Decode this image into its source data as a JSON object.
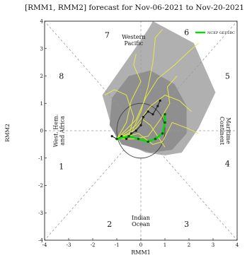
{
  "chart_data": {
    "type": "scatter",
    "title": "[RMM1, RMM2] forecast for Nov-06-2021 to Nov-20-2021",
    "xlabel": "RMM1",
    "ylabel": "RMM2",
    "xlim": [
      -4,
      4
    ],
    "ylim": [
      -4,
      4
    ],
    "x_ticks": [
      "-4",
      "-3",
      "-2",
      "-1",
      "0",
      "1",
      "2",
      "3",
      "4"
    ],
    "y_ticks": [
      "-4",
      "-3",
      "-2",
      "-1",
      "0",
      "1",
      "2",
      "3",
      "4"
    ],
    "phases": [
      {
        "label": "1",
        "x": -3.3,
        "y": -1.3
      },
      {
        "label": "2",
        "x": -1.3,
        "y": -3.4
      },
      {
        "label": "3",
        "x": 1.9,
        "y": -3.4
      },
      {
        "label": "4",
        "x": 3.6,
        "y": -1.2
      },
      {
        "label": "5",
        "x": 3.6,
        "y": 2.0
      },
      {
        "label": "6",
        "x": 1.9,
        "y": 3.6
      },
      {
        "label": "7",
        "x": -1.4,
        "y": 3.5
      },
      {
        "label": "8",
        "x": -3.3,
        "y": 2.0
      }
    ],
    "regions": [
      {
        "lines": [
          "Western",
          "Pacific"
        ],
        "x": -0.3,
        "y": 3.3
      },
      {
        "lines": [
          "Indian",
          "Ocean"
        ],
        "x": 0.0,
        "y": -3.3
      },
      {
        "lines": [
          "West. Hem.",
          "and Africa"
        ],
        "x": -3.4,
        "y": 0.0,
        "rotate": -90
      },
      {
        "lines": [
          "Maritime",
          "Continent"
        ],
        "x": 3.5,
        "y": 0.0,
        "rotate": 90
      }
    ],
    "legend": {
      "label": "NCEP GEFSBC",
      "color": "#00e000",
      "placement": "top-right"
    },
    "colors": {
      "outer_spread": "#b0b0b0",
      "inner_spread": "#8f8f8f",
      "members": "#e8e84a",
      "observed": "#1a1a1a",
      "ensemble_mean": "#00e000",
      "axis_dash": "#9a9a9a"
    },
    "outer_spread": [
      [
        0.5,
        4.0
      ],
      [
        2.2,
        3.2
      ],
      [
        3.1,
        1.4
      ],
      [
        2.4,
        0.1
      ],
      [
        1.7,
        -0.8
      ],
      [
        1.0,
        -0.9
      ],
      [
        0.2,
        -0.8
      ],
      [
        -1.0,
        -0.3
      ],
      [
        -1.3,
        0.4
      ],
      [
        -1.6,
        1.3
      ],
      [
        -0.4,
        2.8
      ],
      [
        0.3,
        3.7
      ]
    ],
    "inner_spread": [
      [
        0.4,
        2.2
      ],
      [
        1.4,
        1.7
      ],
      [
        1.9,
        0.9
      ],
      [
        1.9,
        -0.1
      ],
      [
        1.3,
        -0.7
      ],
      [
        0.4,
        -0.8
      ],
      [
        -0.8,
        -0.5
      ],
      [
        -1.3,
        0.2
      ],
      [
        -1.2,
        1.2
      ],
      [
        -0.5,
        2.0
      ]
    ],
    "members": [
      [
        [
          -1.0,
          -0.3
        ],
        [
          -0.3,
          0.0
        ],
        [
          0.1,
          0.4
        ],
        [
          0.4,
          0.2
        ],
        [
          0.7,
          -0.2
        ],
        [
          1.0,
          -0.6
        ]
      ],
      [
        [
          -1.0,
          -0.3
        ],
        [
          -0.4,
          -0.1
        ],
        [
          0.0,
          0.7
        ],
        [
          0.3,
          1.6
        ],
        [
          0.5,
          2.5
        ],
        [
          0.6,
          3.4
        ],
        [
          0.9,
          3.7
        ]
      ],
      [
        [
          -1.0,
          -0.3
        ],
        [
          -0.2,
          0.2
        ],
        [
          0.4,
          0.9
        ],
        [
          1.0,
          1.3
        ],
        [
          1.6,
          1.1
        ],
        [
          2.1,
          0.7
        ]
      ],
      [
        [
          -1.0,
          -0.3
        ],
        [
          -0.5,
          -0.2
        ],
        [
          -0.3,
          0.5
        ],
        [
          -0.6,
          1.3
        ],
        [
          -1.1,
          1.5
        ],
        [
          -1.5,
          1.3
        ]
      ],
      [
        [
          -1.0,
          -0.3
        ],
        [
          -0.1,
          -0.1
        ],
        [
          0.5,
          -0.5
        ],
        [
          0.9,
          -0.4
        ],
        [
          1.3,
          0.3
        ],
        [
          1.9,
          0.1
        ],
        [
          2.4,
          -0.1
        ]
      ],
      [
        [
          -1.0,
          -0.3
        ],
        [
          -0.2,
          0.4
        ],
        [
          0.2,
          1.2
        ],
        [
          0.7,
          1.9
        ],
        [
          1.4,
          2.4
        ],
        [
          2.0,
          2.9
        ],
        [
          2.4,
          3.2
        ]
      ],
      [
        [
          -1.0,
          -0.3
        ],
        [
          -0.6,
          0.3
        ],
        [
          -0.4,
          1.1
        ],
        [
          0.0,
          1.8
        ],
        [
          -0.3,
          2.4
        ],
        [
          -0.2,
          2.8
        ]
      ],
      [
        [
          -1.0,
          -0.3
        ],
        [
          -0.3,
          -0.3
        ],
        [
          0.3,
          -0.2
        ],
        [
          0.8,
          0.4
        ],
        [
          1.2,
          1.0
        ],
        [
          1.1,
          1.6
        ],
        [
          1.5,
          2.0
        ]
      ]
    ],
    "observed": [
      [
        -1.2,
        -0.2
      ],
      [
        -1.0,
        -0.3
      ],
      [
        -0.8,
        -0.2
      ],
      [
        -0.6,
        -0.3
      ],
      [
        -0.4,
        -0.1
      ],
      [
        -0.2,
        0.0
      ],
      [
        0.0,
        0.2
      ],
      [
        0.1,
        0.5
      ],
      [
        0.3,
        0.7
      ],
      [
        0.5,
        0.6
      ],
      [
        0.7,
        0.9
      ],
      [
        0.8,
        1.1
      ]
    ],
    "ensemble_mean": [
      [
        -1.0,
        -0.3
      ],
      [
        -0.5,
        -0.2
      ],
      [
        -0.1,
        -0.3
      ],
      [
        0.3,
        -0.4
      ],
      [
        0.6,
        -0.3
      ],
      [
        0.9,
        -0.1
      ],
      [
        1.0,
        0.3
      ],
      [
        1.0,
        0.6
      ]
    ]
  }
}
